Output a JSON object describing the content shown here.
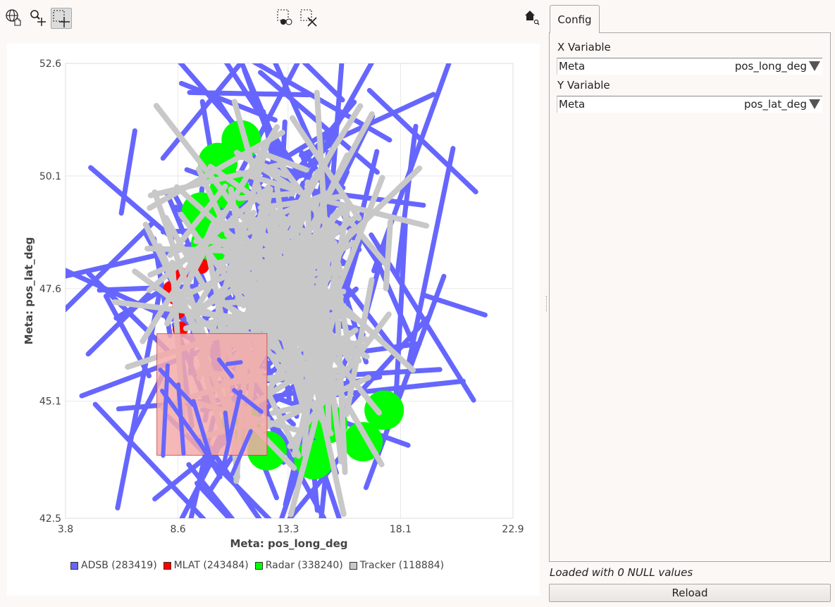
{
  "toolbar": {
    "tools": [
      {
        "icon": "globe-hand-icon"
      },
      {
        "icon": "zoom-in-icon"
      },
      {
        "icon": "select-rect-add-icon",
        "active": true
      },
      {
        "icon": "select-invert-icon"
      },
      {
        "icon": "select-clear-icon"
      },
      {
        "icon": "home-zoom-icon"
      }
    ]
  },
  "chart_data": {
    "type": "scatter",
    "xlabel": "Meta: pos_long_deg",
    "ylabel": "Meta: pos_lat_deg",
    "xlim": [
      3.8,
      22.9
    ],
    "ylim": [
      42.5,
      52.6
    ],
    "x_ticks": [
      "3.8",
      "8.6",
      "13.3",
      "18.1",
      "22.9"
    ],
    "y_ticks": [
      "52.6",
      "50.1",
      "47.6",
      "45.1",
      "42.5"
    ],
    "grid": true,
    "legend_position": "bottom",
    "series": [
      {
        "name": "ADSB (283419)",
        "color": "#6666ff"
      },
      {
        "name": "MLAT (243484)",
        "color": "#ff0000"
      },
      {
        "name": "Radar (338240)",
        "color": "#00ff00"
      },
      {
        "name": "Tracker (118884)",
        "color": "#c8c8c8"
      }
    ],
    "selection_rect": {
      "x": [
        7.7,
        12.4
      ],
      "y": [
        43.9,
        46.6
      ],
      "color": "#f4aaaa"
    }
  },
  "config": {
    "tab_label": "Config",
    "x_variable": {
      "label": "X Variable",
      "group": "Meta",
      "value": "pos_long_deg"
    },
    "y_variable": {
      "label": "Y Variable",
      "group": "Meta",
      "value": "pos_lat_deg"
    }
  },
  "status_text": "Loaded with 0 NULL values",
  "reload_label": "Reload"
}
